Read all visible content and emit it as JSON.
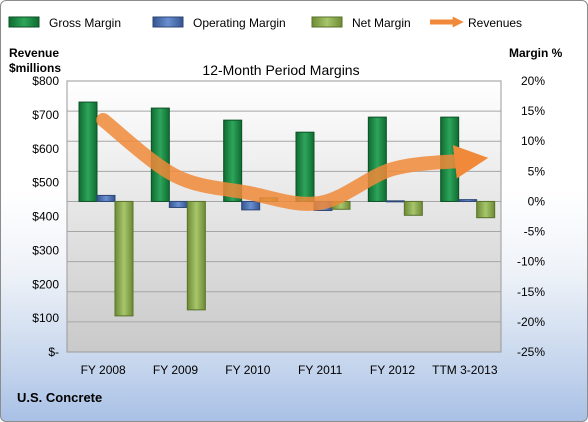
{
  "chart_data": {
    "type": "bar",
    "title": "12-Month Period Margins",
    "left_axis_title": [
      "Revenue",
      "$millions"
    ],
    "right_axis_title": "Margin %",
    "categories": [
      "FY 2008",
      "FY 2009",
      "FY 2010",
      "FY 2011",
      "FY 2012",
      "TTM 3-2013"
    ],
    "left_ticks": [
      "$800",
      "$700",
      "$600",
      "$500",
      "$400",
      "$300",
      "$200",
      "$100",
      "$-"
    ],
    "right_ticks": [
      "20%",
      "15%",
      "10%",
      "5%",
      "0%",
      "-5%",
      "-10%",
      "-15%",
      "-20%",
      "-25%"
    ],
    "ylim_left": [
      0,
      800
    ],
    "ylim_right": [
      -25,
      20
    ],
    "series": [
      {
        "name": "Gross Margin",
        "type": "bar",
        "axis": "right",
        "color": "#1e8c48",
        "values": [
          16.5,
          15.5,
          13.5,
          11.5,
          14.0,
          14.0
        ]
      },
      {
        "name": "Operating Margin",
        "type": "bar",
        "axis": "right",
        "color": "#4f74bb",
        "values": [
          1.0,
          -1.0,
          -1.4,
          -1.5,
          0.1,
          0.3
        ]
      },
      {
        "name": "Net Margin",
        "type": "bar",
        "axis": "right",
        "color": "#8db04e",
        "values": [
          -19.0,
          -18.0,
          0.6,
          -1.3,
          -2.3,
          -2.7
        ]
      },
      {
        "name": "Revenues",
        "type": "line",
        "axis": "left",
        "color": "#f08a3a",
        "values": [
          685,
          520,
          470,
          440,
          540,
          565
        ]
      }
    ],
    "grid": true,
    "legend_position": "top"
  },
  "footer": {
    "company": "U.S. Concrete"
  }
}
